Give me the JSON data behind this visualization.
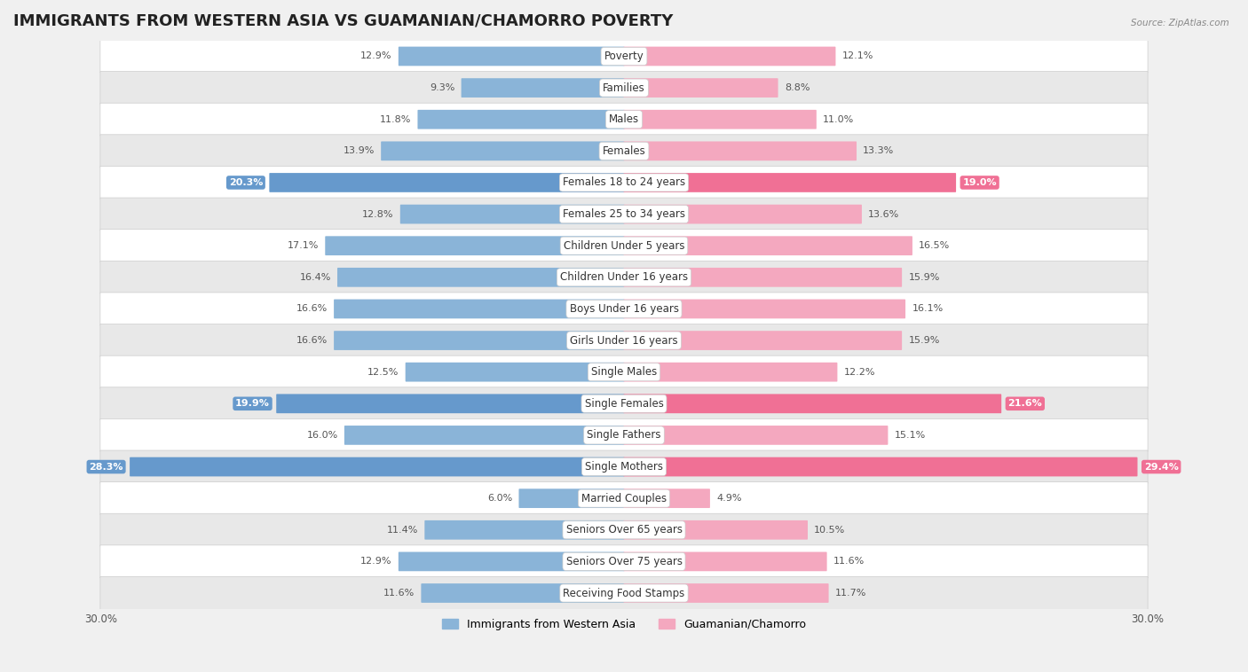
{
  "title": "IMMIGRANTS FROM WESTERN ASIA VS GUAMANIAN/CHAMORRO POVERTY",
  "source": "Source: ZipAtlas.com",
  "categories": [
    "Poverty",
    "Families",
    "Males",
    "Females",
    "Females 18 to 24 years",
    "Females 25 to 34 years",
    "Children Under 5 years",
    "Children Under 16 years",
    "Boys Under 16 years",
    "Girls Under 16 years",
    "Single Males",
    "Single Females",
    "Single Fathers",
    "Single Mothers",
    "Married Couples",
    "Seniors Over 65 years",
    "Seniors Over 75 years",
    "Receiving Food Stamps"
  ],
  "left_values": [
    12.9,
    9.3,
    11.8,
    13.9,
    20.3,
    12.8,
    17.1,
    16.4,
    16.6,
    16.6,
    12.5,
    19.9,
    16.0,
    28.3,
    6.0,
    11.4,
    12.9,
    11.6
  ],
  "right_values": [
    12.1,
    8.8,
    11.0,
    13.3,
    19.0,
    13.6,
    16.5,
    15.9,
    16.1,
    15.9,
    12.2,
    21.6,
    15.1,
    29.4,
    4.9,
    10.5,
    11.6,
    11.7
  ],
  "left_color": "#8ab4d8",
  "right_color": "#f4a8bf",
  "left_highlight_color": "#6699cc",
  "right_highlight_color": "#f07095",
  "highlight_rows": [
    4,
    11,
    13
  ],
  "xlim": 30.0,
  "legend_left": "Immigrants from Western Asia",
  "legend_right": "Guamanian/Chamorro",
  "background_color": "#f0f0f0",
  "row_bg_even": "#ffffff",
  "row_bg_odd": "#e8e8e8",
  "title_fontsize": 13,
  "label_fontsize": 8.5,
  "value_fontsize": 8.0,
  "bar_height": 0.55
}
